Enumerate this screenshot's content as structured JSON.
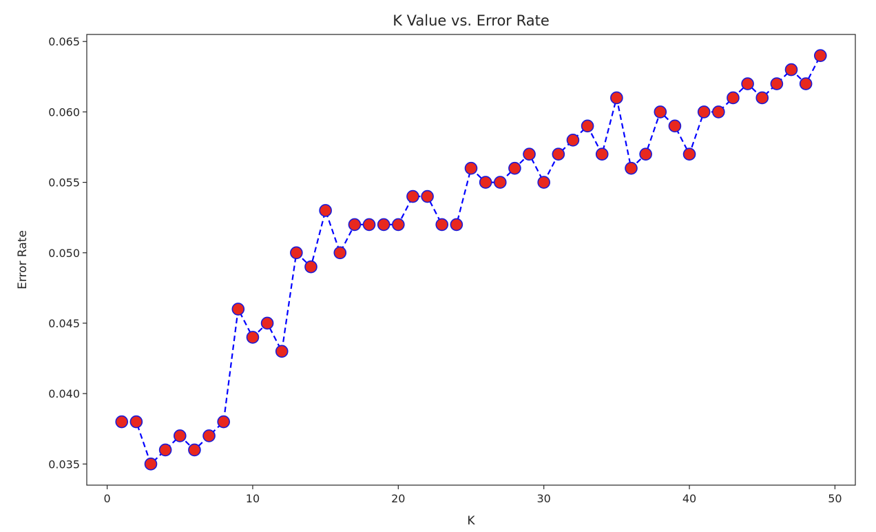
{
  "chart_data": {
    "type": "line",
    "title": "K Value vs. Error Rate",
    "xlabel": "K",
    "ylabel": "Error Rate",
    "xlim": [
      -1.4,
      51.4
    ],
    "ylim": [
      0.0335,
      0.0655
    ],
    "xticks": [
      0,
      10,
      20,
      30,
      40,
      50
    ],
    "xtick_labels": [
      "0",
      "10",
      "20",
      "30",
      "40",
      "50"
    ],
    "yticks": [
      0.035,
      0.04,
      0.045,
      0.05,
      0.055,
      0.06,
      0.065
    ],
    "ytick_labels": [
      "0.035",
      "0.040",
      "0.045",
      "0.050",
      "0.055",
      "0.060",
      "0.065"
    ],
    "grid": false,
    "line_style": "dashed",
    "line_color": "#0000ff",
    "marker": "circle",
    "marker_face_color": "#e8281e",
    "marker_edge_color": "#1a1ad8",
    "x": [
      1,
      2,
      3,
      4,
      5,
      6,
      7,
      8,
      9,
      10,
      11,
      12,
      13,
      14,
      15,
      16,
      17,
      18,
      19,
      20,
      21,
      22,
      23,
      24,
      25,
      26,
      27,
      28,
      29,
      30,
      31,
      32,
      33,
      34,
      35,
      36,
      37,
      38,
      39,
      40,
      41,
      42,
      43,
      44,
      45,
      46,
      47,
      48,
      49
    ],
    "values": [
      0.038,
      0.038,
      0.035,
      0.036,
      0.037,
      0.036,
      0.037,
      0.038,
      0.046,
      0.044,
      0.045,
      0.043,
      0.05,
      0.049,
      0.053,
      0.05,
      0.052,
      0.052,
      0.052,
      0.052,
      0.054,
      0.054,
      0.052,
      0.052,
      0.056,
      0.055,
      0.055,
      0.056,
      0.057,
      0.055,
      0.057,
      0.058,
      0.059,
      0.057,
      0.061,
      0.056,
      0.057,
      0.06,
      0.059,
      0.057,
      0.06,
      0.06,
      0.061,
      0.062,
      0.061,
      0.062,
      0.063,
      0.062,
      0.064
    ]
  }
}
